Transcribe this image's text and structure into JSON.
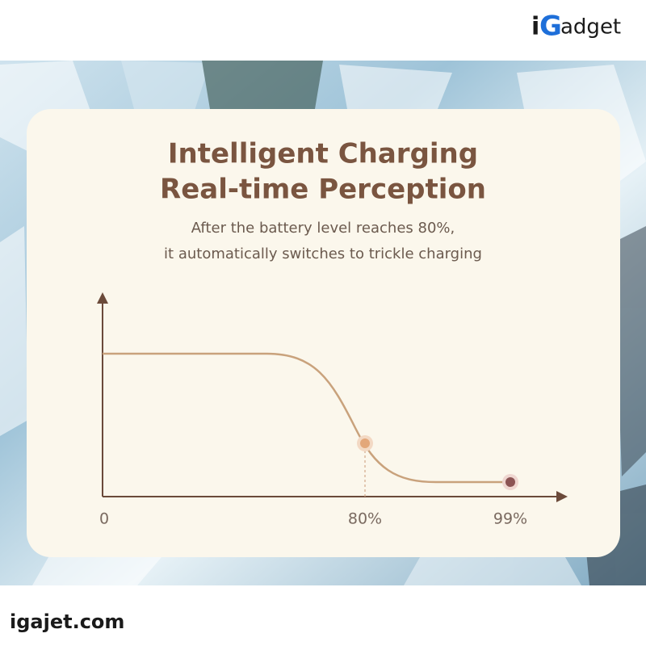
{
  "logo": {
    "prefix": "i",
    "letter": "G",
    "suffix": "adget"
  },
  "title": [
    "Intelligent Charging",
    "Real-time Perception"
  ],
  "subtitle": [
    "After the battery level reaches 80%,",
    "it automatically switches to trickle charging"
  ],
  "axis_labels": [
    "0",
    "80%",
    "99%"
  ],
  "footer": "igajet.com"
}
